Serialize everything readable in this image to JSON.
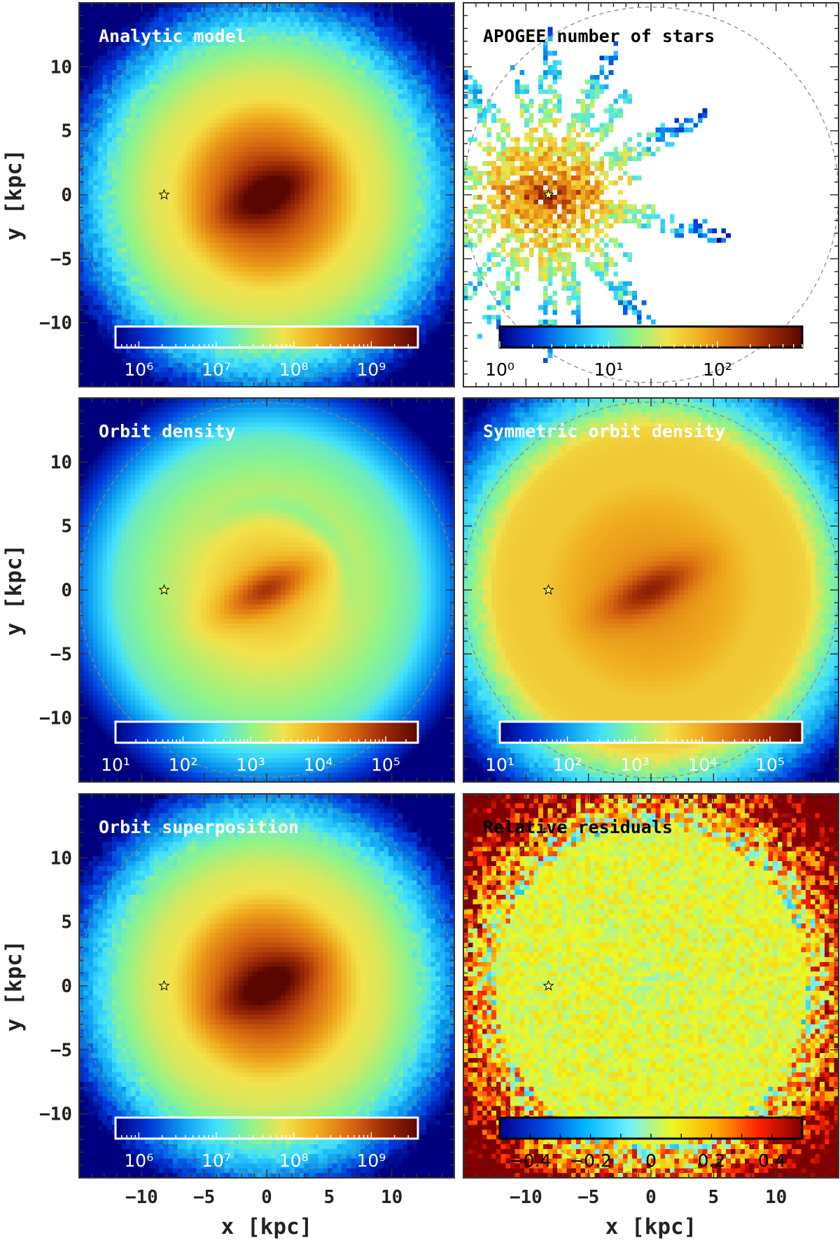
{
  "figure": {
    "shared_axes": {
      "xlabel": "x [kpc]",
      "ylabel": "y [kpc]",
      "xlim": [
        -15,
        15
      ],
      "ylim": [
        -15,
        15
      ],
      "xticks": [
        -10,
        -5,
        0,
        5,
        10
      ],
      "yticks": [
        -10,
        -5,
        0,
        5,
        10
      ],
      "xtick_labels": [
        "−10",
        "−5",
        "0",
        "5",
        "10"
      ],
      "ytick_labels": [
        "−10",
        "−5",
        "0",
        "5",
        "10"
      ],
      "grid": false
    },
    "colors": {
      "colormap": [
        "#00007f",
        "#0038d8",
        "#0a9cf0",
        "#40e0ff",
        "#8ff48a",
        "#f2e34c",
        "#f0ad1e",
        "#d96a10",
        "#9e2a06",
        "#5a0600"
      ],
      "colormap_cool": [
        "#00008f",
        "#0047e0",
        "#00b8ff",
        "#6ff2ff",
        "#eef820",
        "#ffaa00",
        "#ff2000",
        "#7f0000"
      ],
      "frame": "#333333",
      "circle": "#8a8a8a",
      "star_marker": "#ffff66"
    }
  },
  "chart_data": [
    {
      "id": "analytic-model",
      "type": "heatmap",
      "title": "Analytic model",
      "title_color": "#ffffff",
      "field": "model",
      "scale": "log",
      "colorbar": {
        "tick_labels": [
          "10⁶",
          "10⁷",
          "10⁸",
          "10⁹"
        ],
        "tick_values": [
          1000000.0,
          10000000.0,
          100000000.0,
          1000000000.0
        ],
        "range": [
          500000,
          4000000000
        ],
        "label_color": "#ffffff"
      },
      "sun_position": [
        -8.2,
        0
      ],
      "circle_radius": 15,
      "show_xlabel": false,
      "show_ylabel": true
    },
    {
      "id": "apogee-number-of-stars",
      "type": "heatmap",
      "title": "APOGEE number of stars",
      "title_color": "#000000",
      "field": "apogee",
      "scale": "log",
      "colorbar": {
        "tick_labels": [
          "10⁰",
          "10¹",
          "10²"
        ],
        "tick_values": [
          1,
          10,
          100
        ],
        "range": [
          1,
          600
        ],
        "label_color": "#000000"
      },
      "sun_position": [
        -8.2,
        0
      ],
      "circle_radius": 15,
      "show_xlabel": false,
      "show_ylabel": false
    },
    {
      "id": "orbit-density",
      "type": "heatmap",
      "title": "Orbit density",
      "title_color": "#ffffff",
      "field": "orbit",
      "scale": "log",
      "colorbar": {
        "tick_labels": [
          "10¹",
          "10²",
          "10³",
          "10⁴",
          "10⁵"
        ],
        "tick_values": [
          10,
          100,
          1000,
          10000,
          100000
        ],
        "range": [
          10,
          300000
        ],
        "label_color": "#ffffff"
      },
      "sun_position": [
        -8.2,
        0
      ],
      "circle_radius": 15,
      "show_xlabel": false,
      "show_ylabel": true
    },
    {
      "id": "symmetric-orbit-density",
      "type": "heatmap",
      "title": "Symmetric orbit density",
      "title_color": "#ffffff",
      "field": "symmetric",
      "scale": "log",
      "colorbar": {
        "tick_labels": [
          "10¹",
          "10²",
          "10³",
          "10⁴",
          "10⁵"
        ],
        "tick_values": [
          10,
          100,
          1000,
          10000,
          100000
        ],
        "range": [
          10,
          300000
        ],
        "label_color": "#ffffff"
      },
      "sun_position": [
        -8.2,
        0
      ],
      "circle_radius": 15,
      "show_xlabel": false,
      "show_ylabel": false
    },
    {
      "id": "orbit-superposition",
      "type": "heatmap",
      "title": "Orbit superposition",
      "title_color": "#ffffff",
      "field": "model",
      "scale": "log",
      "colorbar": {
        "tick_labels": [
          "10⁶",
          "10⁷",
          "10⁸",
          "10⁹"
        ],
        "tick_values": [
          1000000.0,
          10000000.0,
          100000000.0,
          1000000000.0
        ],
        "range": [
          500000,
          4000000000
        ],
        "label_color": "#ffffff"
      },
      "sun_position": [
        -8.2,
        0
      ],
      "circle_radius": 15,
      "show_xlabel": true,
      "show_ylabel": true
    },
    {
      "id": "relative-residuals",
      "type": "heatmap",
      "title": "Relative residuals",
      "title_color": "#000000",
      "field": "residuals",
      "scale": "linear",
      "colorbar": {
        "tick_labels": [
          "−0.4",
          "−0.2",
          "0",
          "0.2",
          "0.4"
        ],
        "tick_values": [
          -0.4,
          -0.2,
          0,
          0.2,
          0.4
        ],
        "range": [
          -0.5,
          0.5
        ],
        "label_color": "#000000"
      },
      "sun_position": [
        -8.2,
        0
      ],
      "circle_radius": 15,
      "show_xlabel": true,
      "show_ylabel": false
    }
  ]
}
